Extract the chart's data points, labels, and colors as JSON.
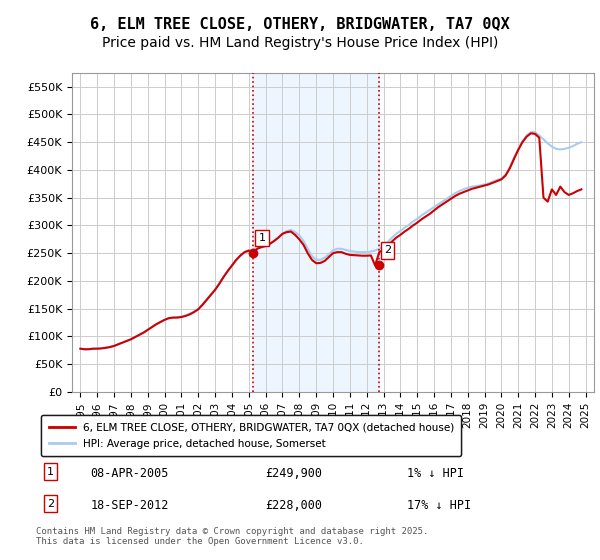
{
  "title": "6, ELM TREE CLOSE, OTHERY, BRIDGWATER, TA7 0QX",
  "subtitle": "Price paid vs. HM Land Registry's House Price Index (HPI)",
  "xlabel": "",
  "ylabel": "",
  "background_color": "#ffffff",
  "plot_bg_color": "#ffffff",
  "grid_color": "#cccccc",
  "ylim": [
    0,
    575000
  ],
  "yticks": [
    0,
    50000,
    100000,
    150000,
    200000,
    250000,
    300000,
    350000,
    400000,
    450000,
    500000,
    550000
  ],
  "ytick_labels": [
    "£0",
    "£50K",
    "£100K",
    "£150K",
    "£200K",
    "£250K",
    "£300K",
    "£350K",
    "£400K",
    "£450K",
    "£500K",
    "£550K"
  ],
  "xtick_years": [
    1995,
    1996,
    1997,
    1998,
    1999,
    2000,
    2001,
    2002,
    2003,
    2004,
    2005,
    2006,
    2007,
    2008,
    2009,
    2010,
    2011,
    2012,
    2013,
    2014,
    2015,
    2016,
    2017,
    2018,
    2019,
    2020,
    2021,
    2022,
    2023,
    2024,
    2025
  ],
  "red_line_color": "#cc0000",
  "blue_line_color": "#aaccee",
  "red_dot_color": "#cc0000",
  "sale1_x": 2005.27,
  "sale1_y": 249900,
  "sale1_label": "1",
  "sale2_x": 2012.72,
  "sale2_y": 228000,
  "sale2_label": "2",
  "vline1_x": 2005.27,
  "vline2_x": 2012.72,
  "vline_color": "#cc0000",
  "vline_style": "dotted",
  "shaded_region_color": "#ddeeff",
  "shaded_alpha": 0.5,
  "legend_red_label": "6, ELM TREE CLOSE, OTHERY, BRIDGWATER, TA7 0QX (detached house)",
  "legend_blue_label": "HPI: Average price, detached house, Somerset",
  "annotation1_text": "08-APR-2005",
  "annotation1_price": "£249,900",
  "annotation1_hpi": "1% ↓ HPI",
  "annotation2_text": "18-SEP-2012",
  "annotation2_price": "£228,000",
  "annotation2_hpi": "17% ↓ HPI",
  "footer_text": "Contains HM Land Registry data © Crown copyright and database right 2025.\nThis data is licensed under the Open Government Licence v3.0.",
  "hpi_data_x": [
    1995,
    1995.25,
    1995.5,
    1995.75,
    1996,
    1996.25,
    1996.5,
    1996.75,
    1997,
    1997.25,
    1997.5,
    1997.75,
    1998,
    1998.25,
    1998.5,
    1998.75,
    1999,
    1999.25,
    1999.5,
    1999.75,
    2000,
    2000.25,
    2000.5,
    2000.75,
    2001,
    2001.25,
    2001.5,
    2001.75,
    2002,
    2002.25,
    2002.5,
    2002.75,
    2003,
    2003.25,
    2003.5,
    2003.75,
    2004,
    2004.25,
    2004.5,
    2004.75,
    2005,
    2005.25,
    2005.5,
    2005.75,
    2006,
    2006.25,
    2006.5,
    2006.75,
    2007,
    2007.25,
    2007.5,
    2007.75,
    2008,
    2008.25,
    2008.5,
    2008.75,
    2009,
    2009.25,
    2009.5,
    2009.75,
    2010,
    2010.25,
    2010.5,
    2010.75,
    2011,
    2011.25,
    2011.5,
    2011.75,
    2012,
    2012.25,
    2012.5,
    2012.75,
    2013,
    2013.25,
    2013.5,
    2013.75,
    2014,
    2014.25,
    2014.5,
    2014.75,
    2015,
    2015.25,
    2015.5,
    2015.75,
    2016,
    2016.25,
    2016.5,
    2016.75,
    2017,
    2017.25,
    2017.5,
    2017.75,
    2018,
    2018.25,
    2018.5,
    2018.75,
    2019,
    2019.25,
    2019.5,
    2019.75,
    2020,
    2020.25,
    2020.5,
    2020.75,
    2021,
    2021.25,
    2021.5,
    2021.75,
    2022,
    2022.25,
    2022.5,
    2022.75,
    2023,
    2023.25,
    2023.5,
    2023.75,
    2024,
    2024.25,
    2024.5,
    2024.75
  ],
  "hpi_data_y": [
    78000,
    77000,
    77500,
    78000,
    78500,
    79000,
    80000,
    81000,
    83000,
    86000,
    89000,
    92000,
    95000,
    99000,
    103000,
    107000,
    112000,
    117000,
    122000,
    126000,
    130000,
    133000,
    134000,
    135000,
    136000,
    138000,
    141000,
    145000,
    150000,
    158000,
    167000,
    176000,
    185000,
    196000,
    208000,
    218000,
    227000,
    237000,
    245000,
    251000,
    254000,
    257000,
    259000,
    261000,
    263000,
    267000,
    272000,
    278000,
    285000,
    290000,
    292000,
    288000,
    282000,
    272000,
    258000,
    245000,
    238000,
    238000,
    242000,
    248000,
    255000,
    258000,
    258000,
    256000,
    254000,
    253000,
    252000,
    252000,
    252000,
    253000,
    255000,
    258000,
    263000,
    270000,
    278000,
    285000,
    290000,
    296000,
    301000,
    307000,
    312000,
    318000,
    323000,
    328000,
    333000,
    338000,
    343000,
    348000,
    353000,
    358000,
    362000,
    365000,
    368000,
    370000,
    371000,
    372000,
    374000,
    376000,
    379000,
    382000,
    385000,
    392000,
    405000,
    422000,
    438000,
    452000,
    462000,
    468000,
    468000,
    462000,
    455000,
    448000,
    442000,
    438000,
    437000,
    438000,
    440000,
    443000,
    447000,
    450000
  ],
  "red_data_x": [
    1995,
    1995.25,
    1995.5,
    1995.75,
    1996,
    1996.25,
    1996.5,
    1996.75,
    1997,
    1997.25,
    1997.5,
    1997.75,
    1998,
    1998.25,
    1998.5,
    1998.75,
    1999,
    1999.25,
    1999.5,
    1999.75,
    2000,
    2000.25,
    2000.5,
    2000.75,
    2001,
    2001.25,
    2001.5,
    2001.75,
    2002,
    2002.25,
    2002.5,
    2002.75,
    2003,
    2003.25,
    2003.5,
    2003.75,
    2004,
    2004.25,
    2004.5,
    2004.75,
    2005,
    2005.25,
    2005.5,
    2005.75,
    2006,
    2006.25,
    2006.5,
    2006.75,
    2007,
    2007.25,
    2007.5,
    2007.75,
    2008,
    2008.25,
    2008.5,
    2008.75,
    2009,
    2009.25,
    2009.5,
    2009.75,
    2010,
    2010.25,
    2010.5,
    2010.75,
    2011,
    2011.25,
    2011.5,
    2011.75,
    2012,
    2012.25,
    2012.5,
    2012.75,
    2013,
    2013.25,
    2013.5,
    2013.75,
    2014,
    2014.25,
    2014.5,
    2014.75,
    2015,
    2015.25,
    2015.5,
    2015.75,
    2016,
    2016.25,
    2016.5,
    2016.75,
    2017,
    2017.25,
    2017.5,
    2017.75,
    2018,
    2018.25,
    2018.5,
    2018.75,
    2019,
    2019.25,
    2019.5,
    2019.75,
    2020,
    2020.25,
    2020.5,
    2020.75,
    2021,
    2021.25,
    2021.5,
    2021.75,
    2022,
    2022.25,
    2022.5,
    2022.75,
    2023,
    2023.25,
    2023.5,
    2023.75,
    2024,
    2024.25,
    2024.5,
    2024.75
  ],
  "red_data_y": [
    78000,
    77000,
    77000,
    78000,
    78000,
    78500,
    79500,
    81000,
    83000,
    86000,
    89000,
    92000,
    95000,
    99000,
    103000,
    107000,
    112000,
    117000,
    122000,
    126000,
    130000,
    133000,
    134000,
    134000,
    135000,
    137000,
    140000,
    144000,
    149000,
    157000,
    166000,
    175000,
    184000,
    195000,
    207000,
    218000,
    228000,
    238000,
    246000,
    252000,
    254900,
    249900,
    258000,
    261000,
    263000,
    267000,
    272000,
    278000,
    285000,
    288000,
    289000,
    283000,
    275000,
    265000,
    250000,
    238000,
    232000,
    232500,
    236000,
    243000,
    250000,
    252000,
    252000,
    249000,
    247000,
    246500,
    246000,
    245500,
    245500,
    246000,
    228000,
    252000,
    256000,
    263000,
    271000,
    278000,
    283000,
    289000,
    294000,
    300000,
    305000,
    311000,
    316000,
    321000,
    327000,
    333000,
    338000,
    343000,
    348000,
    353000,
    357000,
    360000,
    363000,
    366000,
    368000,
    370000,
    372000,
    374000,
    377000,
    380000,
    383000,
    390000,
    403000,
    420000,
    436000,
    450000,
    460000,
    466000,
    465000,
    458000,
    350000,
    343000,
    365000,
    355000,
    370000,
    360000,
    355000,
    358000,
    362000,
    365000
  ],
  "title_fontsize": 11,
  "subtitle_fontsize": 10
}
